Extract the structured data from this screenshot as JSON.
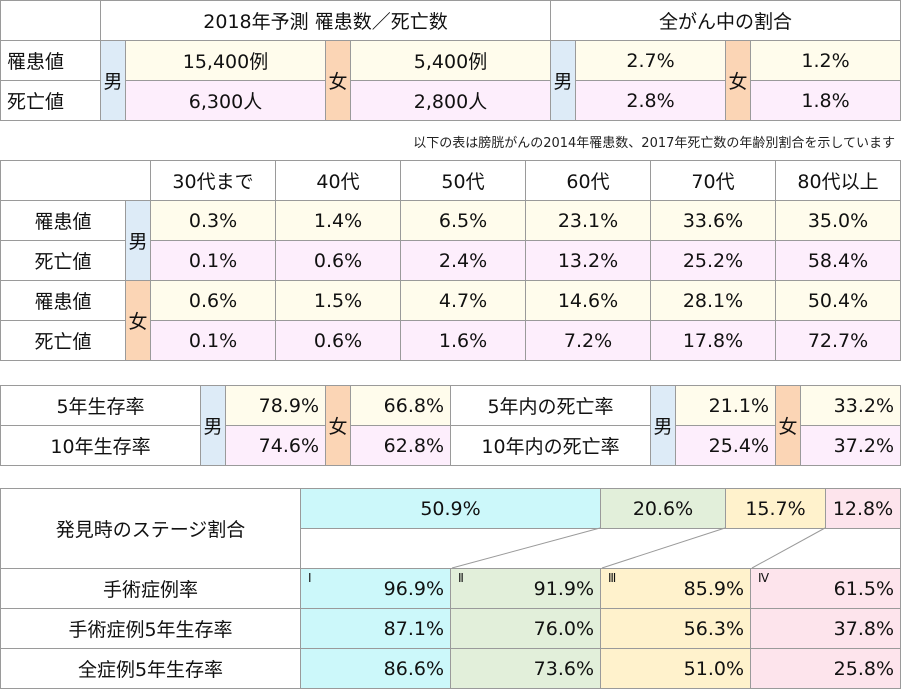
{
  "summary": {
    "header": [
      "2018年予測 罹患数／死亡数",
      "全がん中の割合"
    ],
    "genders": [
      "男",
      "女"
    ],
    "rows": [
      {
        "label": "罹患値",
        "values": [
          "15,400例",
          "5,400例",
          "2.7%",
          "1.2%"
        ]
      },
      {
        "label": "死亡値",
        "values": [
          "6,300人",
          "2,800人",
          "2.8%",
          "1.8%"
        ]
      }
    ]
  },
  "note": "以下の表は膀胱がんの2014年罹患数、2017年死亡数の年齢別割合を示しています",
  "age_table": {
    "columns": [
      "30代まで",
      "40代",
      "50代",
      "60代",
      "70代",
      "80代以上"
    ],
    "genders": [
      "男",
      "女"
    ],
    "rows": [
      {
        "label": "罹患値",
        "values": [
          "0.3%",
          "1.4%",
          "6.5%",
          "23.1%",
          "33.6%",
          "35.0%"
        ]
      },
      {
        "label": "死亡値",
        "values": [
          "0.1%",
          "0.6%",
          "2.4%",
          "13.2%",
          "25.2%",
          "58.4%"
        ]
      },
      {
        "label": "罹患値",
        "values": [
          "0.6%",
          "1.5%",
          "4.7%",
          "14.6%",
          "28.1%",
          "50.4%"
        ]
      },
      {
        "label": "死亡値",
        "values": [
          "0.1%",
          "0.6%",
          "1.6%",
          "7.2%",
          "17.8%",
          "72.7%"
        ]
      }
    ]
  },
  "survival": {
    "genders": [
      "男",
      "女"
    ],
    "rows": [
      {
        "label": "5年生存率",
        "male": "78.9%",
        "female": "66.8%",
        "label2": "5年内の死亡率",
        "male2": "21.1%",
        "female2": "33.2%"
      },
      {
        "label": "10年生存率",
        "male": "74.6%",
        "female": "62.8%",
        "label2": "10年内の死亡率",
        "male2": "25.4%",
        "female2": "37.2%"
      }
    ]
  },
  "stages": {
    "title": "発見時のステージ割合",
    "distribution": [
      "50.9%",
      "20.6%",
      "15.7%",
      "12.8%"
    ],
    "stage_labels": [
      "Ⅰ",
      "Ⅱ",
      "Ⅲ",
      "Ⅳ"
    ],
    "rows": [
      {
        "label": "手術症例率",
        "values": [
          "96.9%",
          "91.9%",
          "85.9%",
          "61.5%"
        ]
      },
      {
        "label": "手術症例5年生存率",
        "values": [
          "87.1%",
          "76.0%",
          "56.3%",
          "37.8%"
        ]
      },
      {
        "label": "全症例5年生存率",
        "values": [
          "86.6%",
          "73.6%",
          "51.0%",
          "25.8%"
        ]
      }
    ]
  }
}
